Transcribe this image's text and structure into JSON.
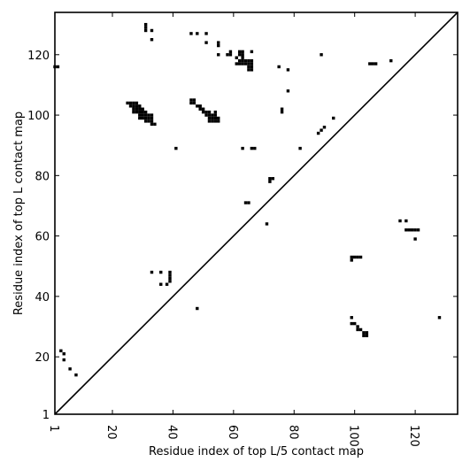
{
  "chart_data": {
    "type": "heatmap",
    "title": "",
    "xlabel": "Residue index of top L/5 contact map",
    "ylabel": "Residue index of top L contact map",
    "xlim": [
      1,
      134
    ],
    "ylim": [
      1,
      134
    ],
    "xticks": [
      1,
      20,
      40,
      60,
      80,
      100,
      120
    ],
    "yticks": [
      1,
      20,
      40,
      60,
      80,
      100,
      120
    ],
    "diagonal": true,
    "grid": false,
    "legend": "none",
    "colors": {
      "cell": "#000000",
      "background": "#ffffff"
    },
    "cells_upper_left": [
      [
        1,
        116
      ],
      [
        2,
        116
      ],
      [
        31,
        128
      ],
      [
        31,
        129
      ],
      [
        31,
        130
      ],
      [
        33,
        128
      ],
      [
        33,
        125
      ],
      [
        46,
        127
      ],
      [
        48,
        127
      ],
      [
        51,
        127
      ],
      [
        51,
        124
      ],
      [
        55,
        124
      ],
      [
        55,
        123
      ],
      [
        55,
        120
      ],
      [
        58,
        120
      ],
      [
        59,
        120
      ],
      [
        59,
        121
      ],
      [
        61,
        117
      ],
      [
        61,
        119
      ],
      [
        62,
        117
      ],
      [
        62,
        118
      ],
      [
        62,
        120
      ],
      [
        62,
        121
      ],
      [
        63,
        117
      ],
      [
        63,
        118
      ],
      [
        63,
        119
      ],
      [
        63,
        120
      ],
      [
        63,
        121
      ],
      [
        64,
        117
      ],
      [
        64,
        118
      ],
      [
        65,
        115
      ],
      [
        65,
        116
      ],
      [
        65,
        117
      ],
      [
        65,
        118
      ],
      [
        66,
        115
      ],
      [
        66,
        116
      ],
      [
        66,
        117
      ],
      [
        66,
        118
      ],
      [
        66,
        121
      ],
      [
        75,
        116
      ],
      [
        78,
        115
      ],
      [
        78,
        108
      ],
      [
        76,
        101
      ],
      [
        76,
        102
      ],
      [
        89,
        120
      ],
      [
        112,
        118
      ],
      [
        105,
        117
      ],
      [
        106,
        117
      ],
      [
        107,
        117
      ],
      [
        25,
        104
      ],
      [
        26,
        104
      ],
      [
        27,
        104
      ],
      [
        28,
        104
      ],
      [
        26,
        103
      ],
      [
        27,
        103
      ],
      [
        28,
        103
      ],
      [
        29,
        103
      ],
      [
        27,
        102
      ],
      [
        28,
        102
      ],
      [
        29,
        102
      ],
      [
        30,
        102
      ],
      [
        27,
        101
      ],
      [
        28,
        101
      ],
      [
        29,
        101
      ],
      [
        30,
        101
      ],
      [
        31,
        101
      ],
      [
        29,
        100
      ],
      [
        30,
        100
      ],
      [
        31,
        100
      ],
      [
        32,
        100
      ],
      [
        33,
        100
      ],
      [
        29,
        99
      ],
      [
        30,
        99
      ],
      [
        31,
        99
      ],
      [
        32,
        99
      ],
      [
        33,
        99
      ],
      [
        31,
        98
      ],
      [
        32,
        98
      ],
      [
        33,
        98
      ],
      [
        33,
        97
      ],
      [
        34,
        97
      ],
      [
        46,
        105
      ],
      [
        47,
        105
      ],
      [
        46,
        104
      ],
      [
        47,
        104
      ],
      [
        48,
        103
      ],
      [
        49,
        103
      ],
      [
        49,
        102
      ],
      [
        50,
        102
      ],
      [
        50,
        101
      ],
      [
        51,
        101
      ],
      [
        52,
        101
      ],
      [
        54,
        101
      ],
      [
        51,
        100
      ],
      [
        52,
        100
      ],
      [
        53,
        100
      ],
      [
        54,
        100
      ],
      [
        52,
        99
      ],
      [
        53,
        99
      ],
      [
        54,
        99
      ],
      [
        55,
        99
      ],
      [
        52,
        98
      ],
      [
        53,
        98
      ],
      [
        54,
        98
      ],
      [
        55,
        98
      ],
      [
        41,
        89
      ],
      [
        63,
        89
      ],
      [
        66,
        89
      ],
      [
        67,
        89
      ],
      [
        82,
        89
      ],
      [
        93,
        99
      ],
      [
        90,
        96
      ],
      [
        89,
        95
      ],
      [
        88,
        94
      ],
      [
        72,
        79
      ],
      [
        73,
        79
      ],
      [
        72,
        78
      ],
      [
        64,
        71
      ],
      [
        65,
        71
      ],
      [
        71,
        64
      ],
      [
        115,
        65
      ],
      [
        117,
        65
      ],
      [
        117,
        62
      ],
      [
        118,
        62
      ],
      [
        119,
        62
      ],
      [
        120,
        62
      ],
      [
        121,
        62
      ],
      [
        120,
        59
      ],
      [
        99,
        53
      ],
      [
        100,
        53
      ],
      [
        101,
        53
      ],
      [
        102,
        53
      ],
      [
        99,
        52
      ],
      [
        33,
        48
      ],
      [
        36,
        48
      ],
      [
        39,
        48
      ],
      [
        39,
        47
      ],
      [
        39,
        46
      ],
      [
        39,
        45
      ],
      [
        36,
        44
      ],
      [
        38,
        44
      ],
      [
        48,
        36
      ],
      [
        99,
        33
      ],
      [
        128,
        33
      ],
      [
        99,
        31
      ],
      [
        100,
        31
      ],
      [
        101,
        30
      ],
      [
        101,
        29
      ],
      [
        102,
        29
      ],
      [
        103,
        28
      ],
      [
        104,
        28
      ],
      [
        103,
        27
      ],
      [
        104,
        27
      ],
      [
        3,
        22
      ],
      [
        4,
        21
      ],
      [
        4,
        19
      ],
      [
        6,
        16
      ],
      [
        8,
        14
      ]
    ]
  }
}
